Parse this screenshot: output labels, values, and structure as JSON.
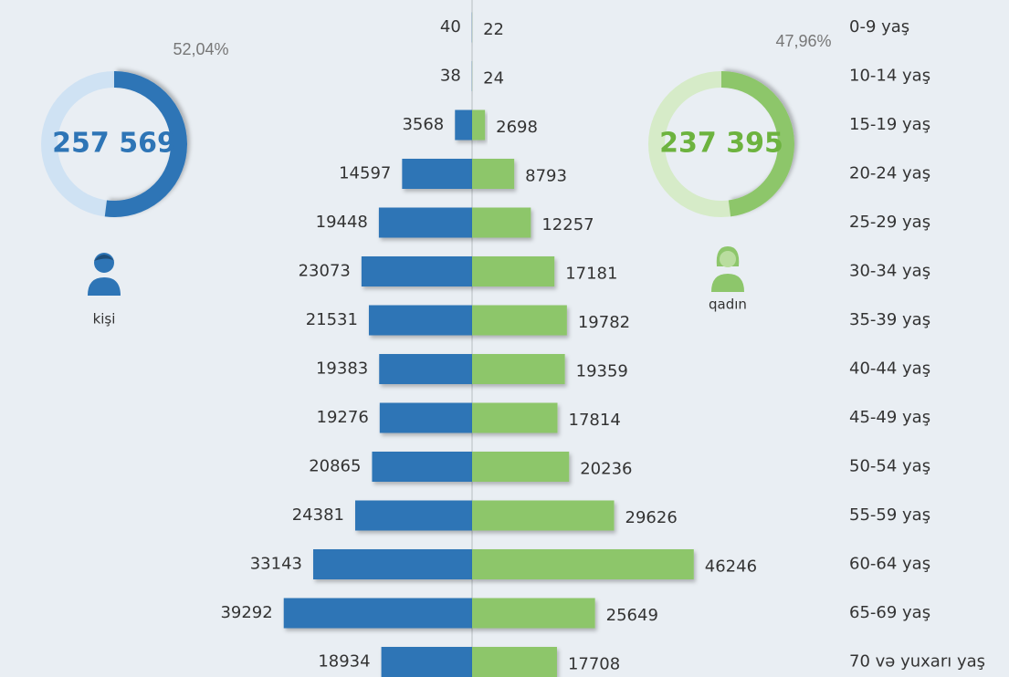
{
  "chart_data": {
    "type": "bar",
    "categories": [
      "0-9 yaş",
      "10-14 yaş",
      "15-19 yaş",
      "20-24 yaş",
      "25-29 yaş",
      "30-34 yaş",
      "35-39 yaş",
      "40-44 yaş",
      "45-49 yaş",
      "50-54 yaş",
      "55-59 yaş",
      "60-64 yaş",
      "65-69 yaş",
      "70 və yuxarı yaş"
    ],
    "series": [
      {
        "name": "kişi",
        "color": "#2e75b6",
        "light_color": "#cfe2f3",
        "side": "left",
        "values": [
          40,
          38,
          3568,
          14597,
          19448,
          23073,
          21531,
          19383,
          19276,
          20865,
          24381,
          33143,
          39292,
          18934
        ],
        "total": 257569,
        "total_label": "257 569",
        "share": 52.04,
        "share_label": "52,04%"
      },
      {
        "name": "qadın",
        "color": "#8dc66b",
        "light_color": "#d6ebc8",
        "total_color": "#6db33f",
        "side": "right",
        "values": [
          22,
          24,
          2698,
          8793,
          12257,
          17181,
          19782,
          19359,
          17814,
          20236,
          29626,
          46246,
          25649,
          17708
        ],
        "total": 237395,
        "total_label": "237 395",
        "share": 47.96,
        "share_label": "47,96%"
      }
    ]
  }
}
